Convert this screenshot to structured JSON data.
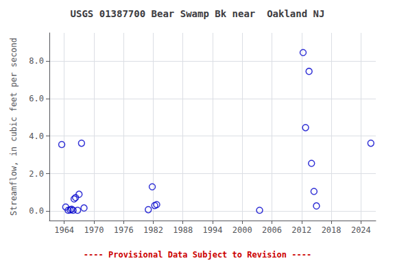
{
  "chart_data": {
    "type": "scatter",
    "title": "USGS 01387700 Bear Swamp Bk near  Oakland NJ",
    "ylabel": "Streamflow, in cubic feet per second",
    "x": [
      1963.5,
      1964.3,
      1964.8,
      1965.2,
      1965.5,
      1965.8,
      1966.0,
      1966.3,
      1966.7,
      1967.0,
      1967.5,
      1968.0,
      1981.0,
      1981.8,
      1982.3,
      1982.7,
      2003.5,
      2012.3,
      2012.8,
      2013.5,
      2014.0,
      2014.5,
      2015.0,
      2026.0
    ],
    "values": [
      3.55,
      0.22,
      0.05,
      0.07,
      0.1,
      0.05,
      0.65,
      0.72,
      0.05,
      0.9,
      3.62,
      0.17,
      0.08,
      1.3,
      0.3,
      0.35,
      0.05,
      8.45,
      4.45,
      7.45,
      2.55,
      1.05,
      0.28,
      3.62
    ],
    "color": "#0000cc",
    "marker": "circle_open",
    "xlim": [
      1961,
      2027
    ],
    "ylim": [
      -0.5,
      9.5
    ],
    "xticks": [
      1964,
      1970,
      1976,
      1982,
      1988,
      1994,
      2000,
      2006,
      2012,
      2018,
      2024
    ],
    "yticks": [
      {
        "value": 0.0,
        "label": "0.0"
      },
      {
        "value": 2.0,
        "label": "2.0"
      },
      {
        "value": 4.0,
        "label": "4.0"
      },
      {
        "value": 6.0,
        "label": "6.0"
      },
      {
        "value": 8.0,
        "label": "8.0"
      }
    ],
    "grid": true,
    "annotations": [
      {
        "text": "---- Provisional Data Subject to Revision ----",
        "color": "#cc0000"
      }
    ]
  }
}
